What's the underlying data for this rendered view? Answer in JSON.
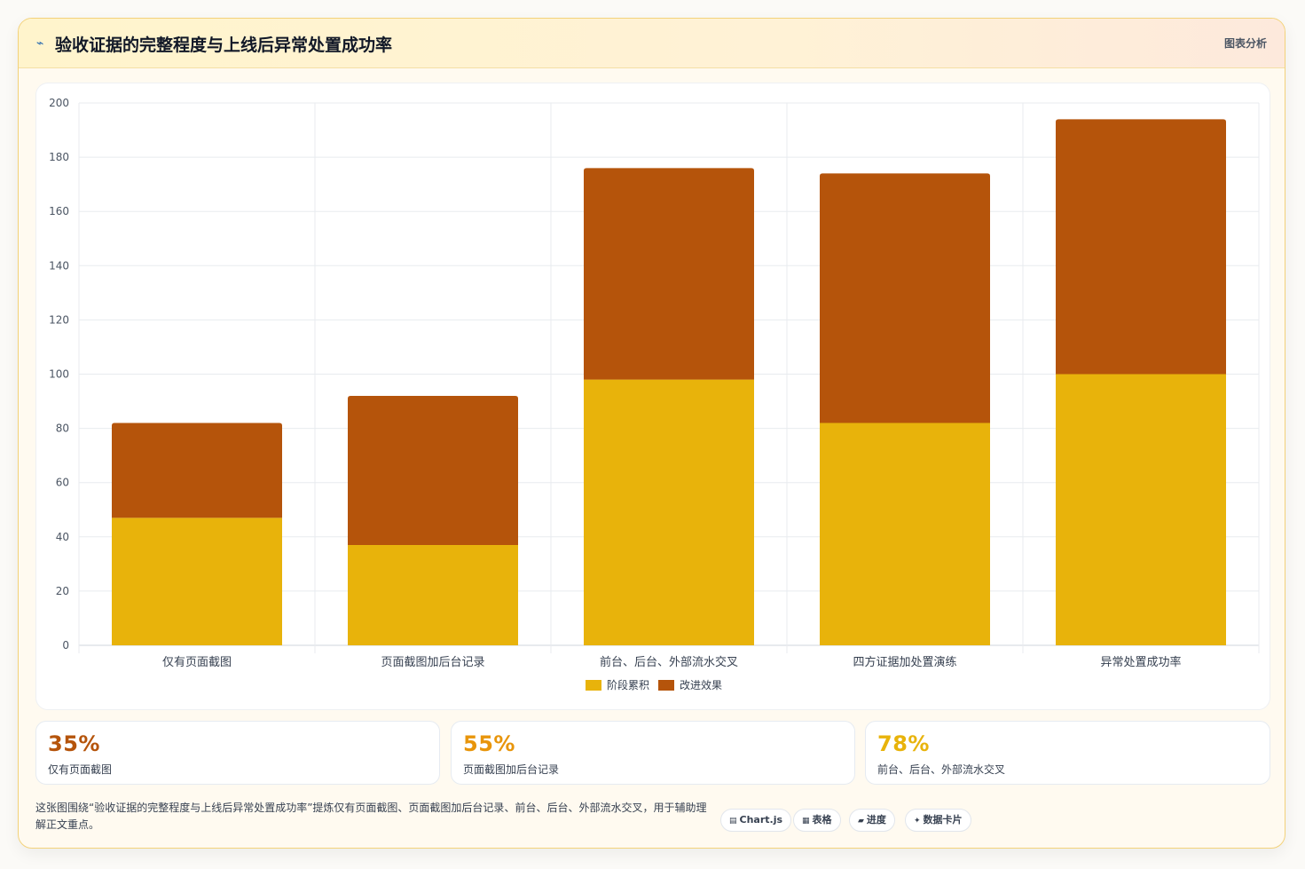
{
  "header": {
    "title": "验收证据的完整程度与上线后异常处置成功率",
    "icon": "trend-icon",
    "tag": "图表分析"
  },
  "colors": {
    "series1": "#e8b30b",
    "series2": "#b5540b",
    "kpi1": "#b5540b",
    "kpi2": "#e8950b",
    "kpi3": "#e8b30b"
  },
  "chart_data": {
    "type": "bar",
    "stacked": true,
    "categories": [
      "仅有页面截图",
      "页面截图加后台记录",
      "前台、后台、外部流水交叉",
      "四方证据加处置演练",
      "异常处置成功率"
    ],
    "series": [
      {
        "name": "阶段累积",
        "values": [
          47,
          37,
          98,
          82,
          100
        ]
      },
      {
        "name": "改进效果",
        "values": [
          35,
          55,
          78,
          92,
          94
        ]
      }
    ],
    "ylim": [
      0,
      200
    ],
    "yticks": [
      0,
      20,
      40,
      60,
      80,
      100,
      120,
      140,
      160,
      180,
      200
    ],
    "grid": true,
    "legend": "bottom"
  },
  "kpis": [
    {
      "value": "35%",
      "label": "仅有页面截图"
    },
    {
      "value": "55%",
      "label": "页面截图加后台记录"
    },
    {
      "value": "78%",
      "label": "前台、后台、外部流水交叉"
    }
  ],
  "footer": {
    "note": "这张图围绕“验收证据的完整程度与上线后异常处置成功率”提炼仅有页面截图、页面截图加后台记录、前台、后台、外部流水交叉，用于辅助理解正文重点。",
    "chips": [
      {
        "icon": "▤",
        "label": "Chart.js"
      },
      {
        "icon": "▦",
        "label": "表格"
      },
      {
        "icon": "▰",
        "label": "进度"
      },
      {
        "icon": "✦",
        "label": "数据卡片"
      }
    ]
  }
}
